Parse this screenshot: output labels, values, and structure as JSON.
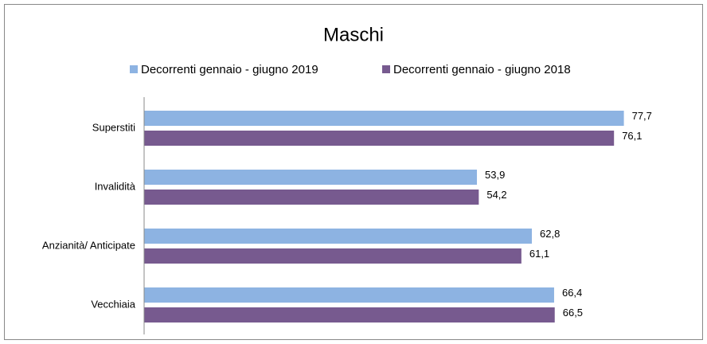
{
  "chart_data": {
    "type": "bar",
    "orientation": "horizontal",
    "title": "Maschi",
    "categories": [
      "Superstiti",
      "Invalidità",
      "Anzianità/ Anticipate",
      "Vecchiaia"
    ],
    "series": [
      {
        "name": "Decorrenti gennaio - giugno 2019",
        "color": "#8db3e2",
        "values": [
          77.7,
          53.9,
          62.8,
          66.4
        ],
        "value_labels": [
          "77,7",
          "53,9",
          "62,8",
          "66,4"
        ]
      },
      {
        "name": "Decorrenti gennaio - giugno 2018",
        "color": "#775a8f",
        "values": [
          76.1,
          54.2,
          61.1,
          66.5
        ],
        "value_labels": [
          "76,1",
          "54,2",
          "61,1",
          "66,5"
        ]
      }
    ],
    "xlim": [
      0,
      90
    ],
    "legend": "top"
  }
}
